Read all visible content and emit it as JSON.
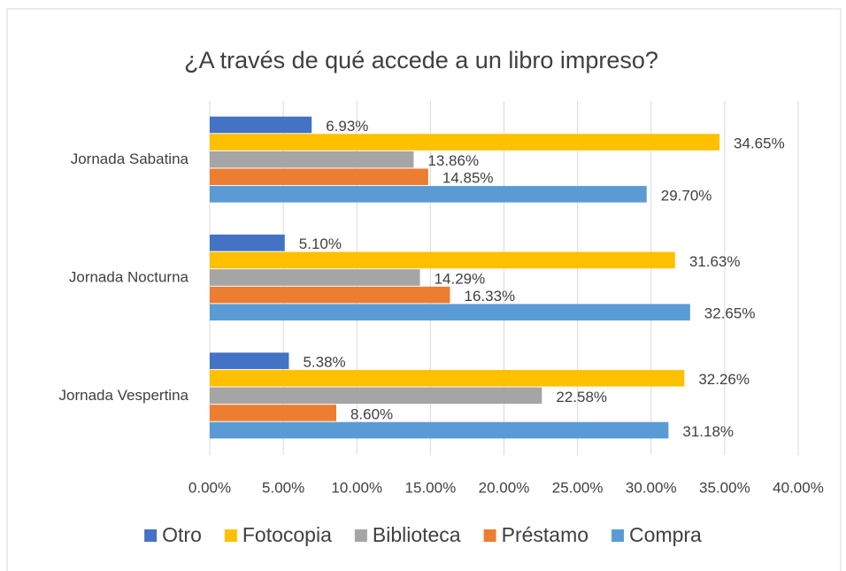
{
  "chart_data": {
    "type": "hbar",
    "title": "¿A través de qué accede a un libro impreso?",
    "categories": [
      "Jornada Sabatina",
      "Jornada Nocturna",
      "Jornada Vespertina"
    ],
    "series": [
      {
        "name": "Otro",
        "color": "#4472c4",
        "values": [
          6.93,
          5.1,
          5.38
        ],
        "value_labels": [
          "6.93%",
          "5.10%",
          "5.38%"
        ]
      },
      {
        "name": "Fotocopia",
        "color": "#ffc000",
        "values": [
          34.65,
          31.63,
          32.26
        ],
        "value_labels": [
          "34.65%",
          "31.63%",
          "32.26%"
        ]
      },
      {
        "name": "Biblioteca",
        "color": "#a5a5a5",
        "values": [
          13.86,
          14.29,
          22.58
        ],
        "value_labels": [
          "13.86%",
          "14.29%",
          "22.58%"
        ]
      },
      {
        "name": "Préstamo",
        "color": "#ed7d31",
        "values": [
          14.85,
          16.33,
          8.6
        ],
        "value_labels": [
          "14.85%",
          "16.33%",
          "8.60%"
        ]
      },
      {
        "name": "Compra",
        "color": "#5b9bd5",
        "values": [
          29.7,
          32.65,
          31.18
        ],
        "value_labels": [
          "29.70%",
          "32.65%",
          "31.18%"
        ]
      }
    ],
    "xlim": [
      0,
      40
    ],
    "xticks": [
      {
        "value": 0,
        "label": "0.00%"
      },
      {
        "value": 5,
        "label": "5.00%"
      },
      {
        "value": 10,
        "label": "10.00%"
      },
      {
        "value": 15,
        "label": "15.00%"
      },
      {
        "value": 20,
        "label": "20.00%"
      },
      {
        "value": 25,
        "label": "25.00%"
      },
      {
        "value": 30,
        "label": "30.00%"
      },
      {
        "value": 35,
        "label": "35.00%"
      },
      {
        "value": 40,
        "label": "40.00%"
      }
    ],
    "grid": true,
    "legend": "bottom"
  }
}
